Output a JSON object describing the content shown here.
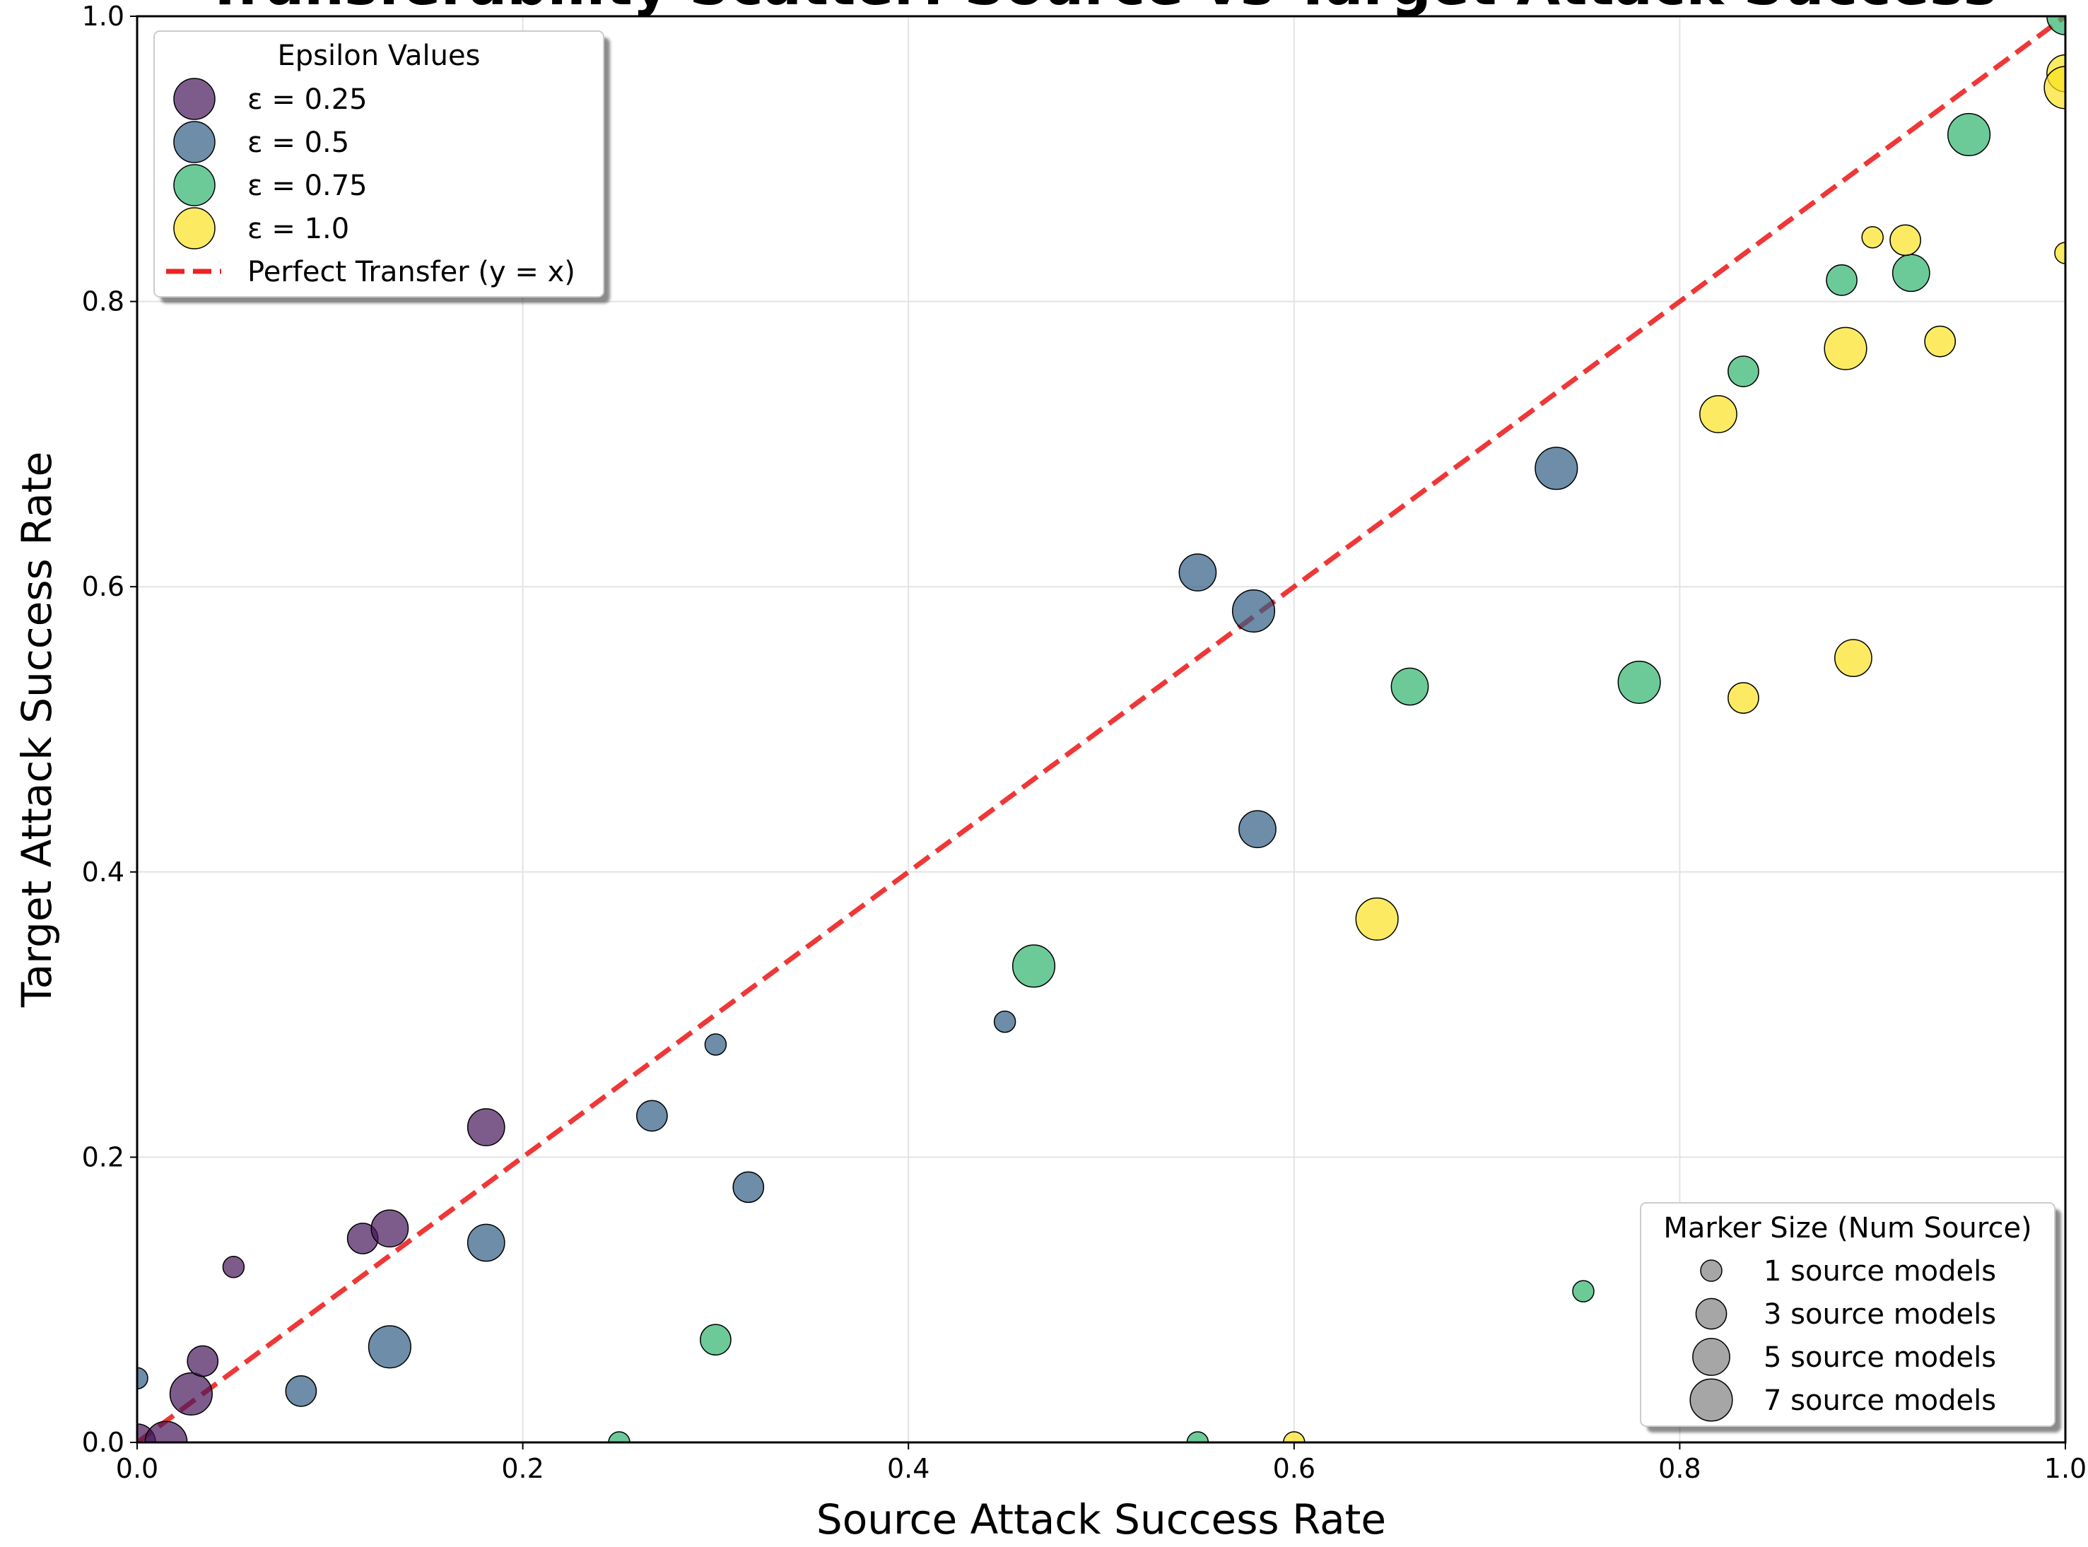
{
  "chart_data": {
    "type": "scatter",
    "title": "Transferability Scatter: Source vs Target Attack Success",
    "xlabel": "Source Attack Success Rate",
    "ylabel": "Target Attack Success Rate",
    "xlim": [
      0.0,
      1.0
    ],
    "ylim": [
      0.0,
      1.0
    ],
    "xticks": [
      "0.0",
      "0.2",
      "0.4",
      "0.6",
      "0.8",
      "1.0"
    ],
    "yticks": [
      "0.0",
      "0.2",
      "0.4",
      "0.6",
      "0.8",
      "1.0"
    ],
    "grid": true,
    "reference_line": {
      "label": "Perfect Transfer (y = x)",
      "color": "#ee2222",
      "from": [
        0,
        0
      ],
      "to": [
        1,
        1
      ]
    },
    "color_legend": {
      "title": "Epsilon Values",
      "placement": "top-left",
      "entries": [
        {
          "label": "ε = 0.25",
          "color": "#46175a"
        },
        {
          "label": "ε = 0.5",
          "color": "#2f5c84"
        },
        {
          "label": "ε = 0.75",
          "color": "#2db36e"
        },
        {
          "label": "ε = 1.0",
          "color": "#fbe31f"
        }
      ]
    },
    "size_legend": {
      "title": "Marker Size (Num Source)",
      "placement": "bottom-right",
      "color": "#808080",
      "entries": [
        {
          "label": "1 source models",
          "n": 1
        },
        {
          "label": "3 source models",
          "n": 3
        },
        {
          "label": "5 source models",
          "n": 5
        },
        {
          "label": "7 source models",
          "n": 7
        }
      ]
    },
    "series": [
      {
        "name": "ε = 0.25",
        "color": "#46175a",
        "points": [
          {
            "x": 0.0,
            "y": 0.0,
            "n": 5
          },
          {
            "x": 0.015,
            "y": 0.0,
            "n": 7
          },
          {
            "x": 0.028,
            "y": 0.034,
            "n": 7
          },
          {
            "x": 0.034,
            "y": 0.057,
            "n": 3
          },
          {
            "x": 0.05,
            "y": 0.123,
            "n": 1
          },
          {
            "x": 0.117,
            "y": 0.143,
            "n": 3
          },
          {
            "x": 0.131,
            "y": 0.15,
            "n": 5
          },
          {
            "x": 0.181,
            "y": 0.221,
            "n": 5
          }
        ]
      },
      {
        "name": "ε = 0.5",
        "color": "#2f5c84",
        "points": [
          {
            "x": 0.0,
            "y": 0.045,
            "n": 1
          },
          {
            "x": 0.085,
            "y": 0.036,
            "n": 3
          },
          {
            "x": 0.131,
            "y": 0.067,
            "n": 7
          },
          {
            "x": 0.181,
            "y": 0.14,
            "n": 5
          },
          {
            "x": 0.267,
            "y": 0.229,
            "n": 3
          },
          {
            "x": 0.3,
            "y": 0.279,
            "n": 1
          },
          {
            "x": 0.317,
            "y": 0.179,
            "n": 3
          },
          {
            "x": 0.45,
            "y": 0.295,
            "n": 1
          },
          {
            "x": 0.55,
            "y": 0.61,
            "n": 5
          },
          {
            "x": 0.579,
            "y": 0.583,
            "n": 7
          },
          {
            "x": 0.581,
            "y": 0.43,
            "n": 5
          },
          {
            "x": 0.736,
            "y": 0.683,
            "n": 7
          }
        ]
      },
      {
        "name": "ε = 0.75",
        "color": "#2db36e",
        "points": [
          {
            "x": 0.25,
            "y": 0.0,
            "n": 1
          },
          {
            "x": 0.3,
            "y": 0.072,
            "n": 3
          },
          {
            "x": 0.465,
            "y": 0.334,
            "n": 7
          },
          {
            "x": 0.55,
            "y": 0.0,
            "n": 1
          },
          {
            "x": 0.66,
            "y": 0.53,
            "n": 5
          },
          {
            "x": 0.75,
            "y": 0.106,
            "n": 1
          },
          {
            "x": 0.779,
            "y": 0.533,
            "n": 7
          },
          {
            "x": 0.833,
            "y": 0.751,
            "n": 3
          },
          {
            "x": 0.884,
            "y": 0.815,
            "n": 3
          },
          {
            "x": 0.92,
            "y": 0.82,
            "n": 5
          },
          {
            "x": 0.95,
            "y": 0.917,
            "n": 7
          },
          {
            "x": 1.0,
            "y": 1.0,
            "n": 5
          }
        ]
      },
      {
        "name": "ε = 1.0",
        "color": "#fbe31f",
        "points": [
          {
            "x": 0.6,
            "y": 0.0,
            "n": 1
          },
          {
            "x": 0.643,
            "y": 0.367,
            "n": 7
          },
          {
            "x": 0.82,
            "y": 0.721,
            "n": 5
          },
          {
            "x": 0.833,
            "y": 0.522,
            "n": 3
          },
          {
            "x": 0.886,
            "y": 0.767,
            "n": 7
          },
          {
            "x": 0.89,
            "y": 0.55,
            "n": 5
          },
          {
            "x": 0.9,
            "y": 0.845,
            "n": 1
          },
          {
            "x": 0.917,
            "y": 0.843,
            "n": 3
          },
          {
            "x": 0.935,
            "y": 0.772,
            "n": 3
          },
          {
            "x": 1.0,
            "y": 0.834,
            "n": 1
          },
          {
            "x": 1.0,
            "y": 0.96,
            "n": 5
          },
          {
            "x": 1.0,
            "y": 0.95,
            "n": 7
          }
        ]
      }
    ]
  }
}
